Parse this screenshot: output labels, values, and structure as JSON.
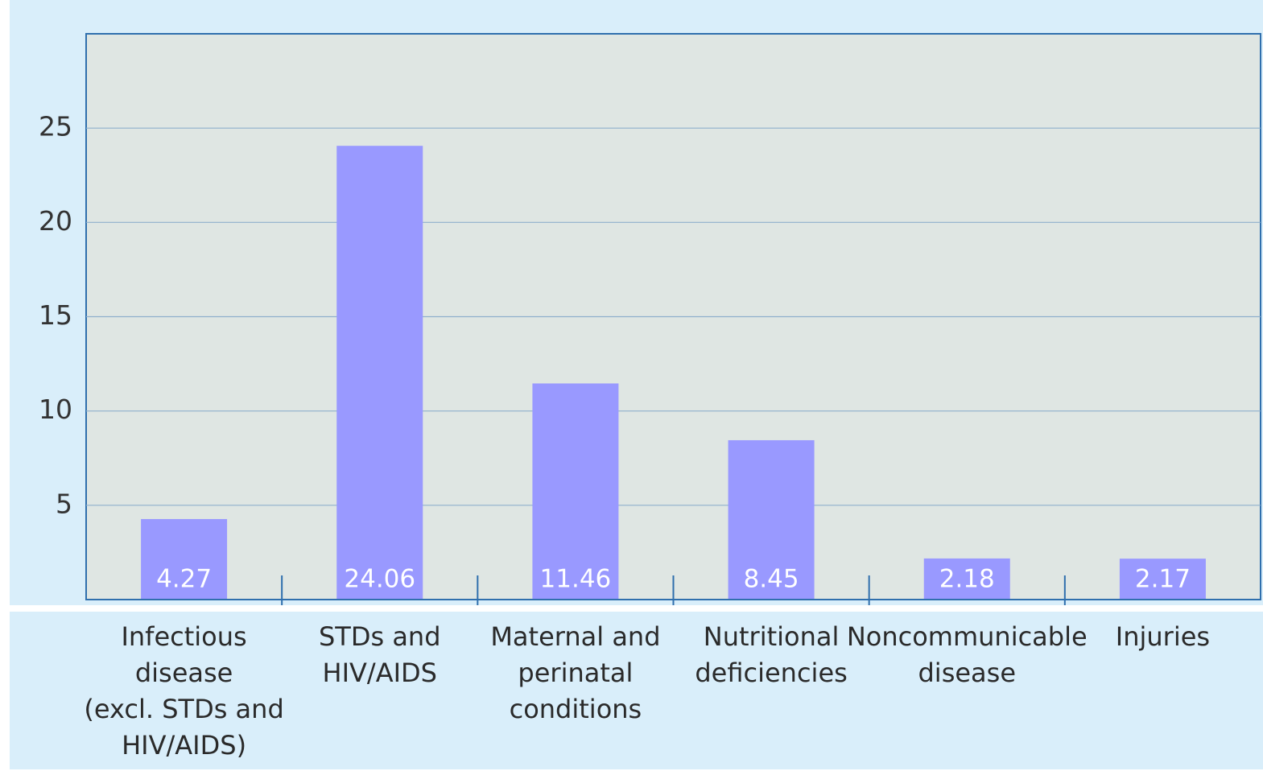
{
  "chart_data": {
    "type": "bar",
    "categories": [
      "Infectious\ndisease\n(excl. STDs and\nHIV/AIDS)",
      "STDs and\nHIV/AIDS",
      "Maternal and\nperinatal\nconditions",
      "Nutritional\ndeficiencies",
      "Noncommunicable\ndisease",
      "Injuries"
    ],
    "values": [
      4.27,
      24.06,
      11.46,
      8.45,
      2.18,
      2.17
    ],
    "color": "#9999ff",
    "ylim": [
      0,
      30
    ],
    "yticks": [
      5,
      10,
      15,
      20,
      25
    ],
    "grid": true
  }
}
